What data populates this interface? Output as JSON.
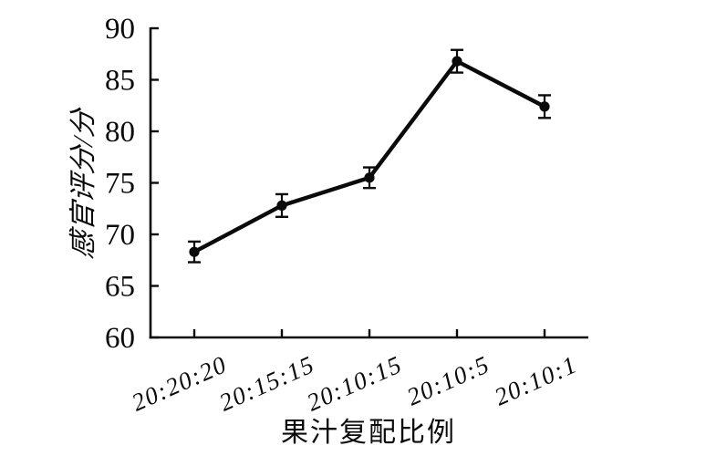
{
  "figure": {
    "background_color": "#ffffff",
    "ink_color": "#0a0a0a"
  },
  "chart_data": {
    "type": "line",
    "title": "",
    "categories": [
      "20:20:20",
      "20:15:15",
      "20:10:15",
      "20:10:5",
      "20:10:1"
    ],
    "series": [
      {
        "name": "感官评分",
        "values": [
          68.3,
          72.8,
          75.5,
          86.8,
          82.4
        ],
        "errors": [
          1.0,
          1.1,
          1.0,
          1.1,
          1.1
        ]
      }
    ],
    "xlabel": "果汁复配比例",
    "ylabel": "感官评分/分",
    "ylim": [
      60,
      90
    ],
    "ytick_step": 5,
    "yticks": [
      60,
      65,
      70,
      75,
      80,
      85,
      90
    ],
    "grid": false,
    "legend_position": "none",
    "marker": "circle",
    "error_bars": true,
    "line_color": "#0a0a0a",
    "xtick_rotation_deg": -24
  }
}
